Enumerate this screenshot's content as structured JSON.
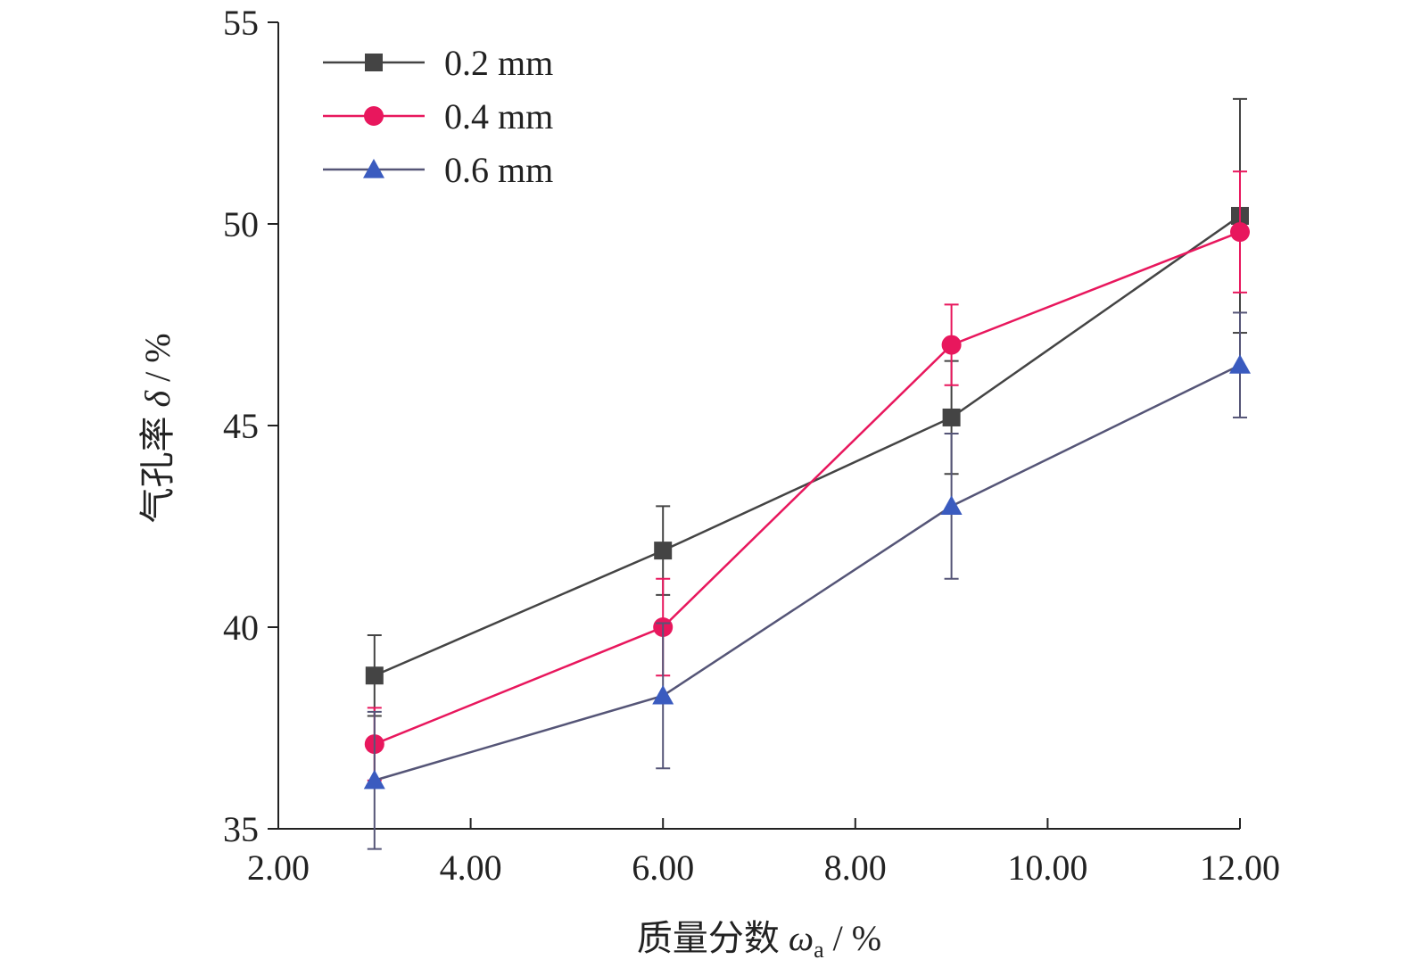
{
  "chart_data": {
    "type": "line",
    "x": [
      3,
      6,
      9,
      12
    ],
    "x_tick_values": [
      2,
      4,
      6,
      8,
      10,
      12
    ],
    "x_tick_labels": [
      "2.00",
      "4.00",
      "6.00",
      "8.00",
      "10.00",
      "12.00"
    ],
    "y_tick_values": [
      35,
      40,
      45,
      50,
      55
    ],
    "y_tick_labels": [
      "35",
      "40",
      "45",
      "50",
      "55"
    ],
    "xlim": [
      2,
      12
    ],
    "ylim": [
      35,
      55
    ],
    "xlabel": {
      "main": "质量分数 ",
      "symbol": "ω",
      "subscript": "a",
      "unit": " / %"
    },
    "ylabel": {
      "main": "气孔率 ",
      "symbol": "δ",
      "unit": " / %"
    },
    "grid": false,
    "legend_position": "top-left",
    "series": [
      {
        "name": "0.2 mm",
        "marker": "square",
        "color": "#444444",
        "line_color": "#444444",
        "values": [
          38.8,
          41.9,
          45.2,
          50.2
        ],
        "errors": [
          1.0,
          1.1,
          1.4,
          2.9
        ]
      },
      {
        "name": "0.4 mm",
        "marker": "circle",
        "color": "#e8175d",
        "line_color": "#e8175d",
        "values": [
          37.1,
          40.0,
          47.0,
          49.8
        ],
        "errors": [
          0.9,
          1.2,
          1.0,
          1.5
        ]
      },
      {
        "name": "0.6 mm",
        "marker": "triangle",
        "color": "#3a5bbf",
        "line_color": "#555577",
        "values": [
          36.2,
          38.3,
          43.0,
          46.5
        ],
        "errors": [
          1.7,
          1.8,
          1.8,
          1.3
        ]
      }
    ]
  }
}
